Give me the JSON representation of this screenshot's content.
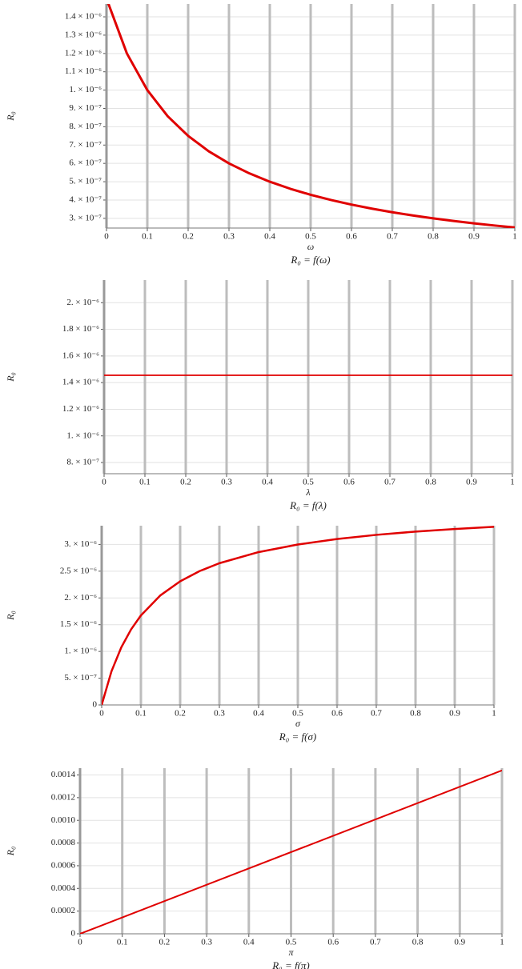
{
  "chart_data": [
    {
      "type": "line",
      "title": "R₀ = f(ω)",
      "xlabel": "ω",
      "ylabel": "R₀",
      "color": "#e00000",
      "xlim": [
        0,
        1
      ],
      "xticks": [
        0,
        0.1,
        0.2,
        0.3,
        0.4,
        0.5,
        0.6,
        0.7,
        0.8,
        0.9,
        1
      ],
      "ylim": [
        2.47e-07,
        1.47e-06
      ],
      "yticks": [
        {
          "value": 3e-07,
          "label": "3. × 10⁻⁷"
        },
        {
          "value": 4e-07,
          "label": "4. × 10⁻⁷"
        },
        {
          "value": 5e-07,
          "label": "5. × 10⁻⁷"
        },
        {
          "value": 6e-07,
          "label": "6. × 10⁻⁷"
        },
        {
          "value": 7e-07,
          "label": "7. × 10⁻⁷"
        },
        {
          "value": 8e-07,
          "label": "8. × 10⁻⁷"
        },
        {
          "value": 9e-07,
          "label": "9. × 10⁻⁷"
        },
        {
          "value": 1e-06,
          "label": "1. × 10⁻⁶"
        },
        {
          "value": 1.1e-06,
          "label": "1.1 × 10⁻⁶"
        },
        {
          "value": 1.2e-06,
          "label": "1.2 × 10⁻⁶"
        },
        {
          "value": 1.3e-06,
          "label": "1.3 × 10⁻⁶"
        },
        {
          "value": 1.4e-06,
          "label": "1.4 × 10⁻⁶"
        }
      ],
      "x": [
        0,
        0.05,
        0.1,
        0.15,
        0.2,
        0.25,
        0.3,
        0.35,
        0.4,
        0.45,
        0.5,
        0.55,
        0.6,
        0.65,
        0.7,
        0.75,
        0.8,
        0.85,
        0.9,
        0.95,
        1
      ],
      "values": [
        1.5e-06,
        1.2e-06,
        1e-06,
        8.571e-07,
        7.5e-07,
        6.667e-07,
        6e-07,
        5.455e-07,
        5e-07,
        4.615e-07,
        4.286e-07,
        4e-07,
        3.75e-07,
        3.529e-07,
        3.333e-07,
        3.158e-07,
        3e-07,
        2.857e-07,
        2.727e-07,
        2.609e-07,
        2.5e-07
      ]
    },
    {
      "type": "line",
      "title": "R₀ = f(λ)",
      "xlabel": "λ",
      "ylabel": "R₀",
      "color": "#e00000",
      "xlim": [
        0,
        1
      ],
      "xticks": [
        0,
        0.1,
        0.2,
        0.3,
        0.4,
        0.5,
        0.6,
        0.7,
        0.8,
        0.9,
        1
      ],
      "ylim": [
        7.16e-07,
        2.17e-06
      ],
      "yticks": [
        {
          "value": 8e-07,
          "label": "8. × 10⁻⁷"
        },
        {
          "value": 1e-06,
          "label": "1. × 10⁻⁶"
        },
        {
          "value": 1.2e-06,
          "label": "1.2 × 10⁻⁶"
        },
        {
          "value": 1.4e-06,
          "label": "1.4 × 10⁻⁶"
        },
        {
          "value": 1.6e-06,
          "label": "1.6 × 10⁻⁶"
        },
        {
          "value": 1.8e-06,
          "label": "1.8 × 10⁻⁶"
        },
        {
          "value": 2e-06,
          "label": "2. × 10⁻⁶"
        }
      ],
      "x": [
        0,
        1
      ],
      "values": [
        1.455e-06,
        1.455e-06
      ]
    },
    {
      "type": "line",
      "title": "R₀ = f(σ)",
      "xlabel": "σ",
      "ylabel": "R₀",
      "color": "#e00000",
      "xlim": [
        0,
        1
      ],
      "xticks": [
        0,
        0.1,
        0.2,
        0.3,
        0.4,
        0.5,
        0.6,
        0.7,
        0.8,
        0.9,
        1
      ],
      "ylim": [
        0,
        3.35e-06
      ],
      "yticks": [
        0,
        {
          "value": 5e-07,
          "label": "5. × 10⁻⁷"
        },
        {
          "value": 1e-06,
          "label": "1. × 10⁻⁶"
        },
        {
          "value": 1.5e-06,
          "label": "1.5 × 10⁻⁶"
        },
        {
          "value": 2e-06,
          "label": "2. × 10⁻⁶"
        },
        {
          "value": 2.5e-06,
          "label": "2.5 × 10⁻⁶"
        },
        {
          "value": 3e-06,
          "label": "3. × 10⁻⁶"
        }
      ],
      "x": [
        0,
        0.025,
        0.05,
        0.075,
        0.1,
        0.15,
        0.2,
        0.25,
        0.3,
        0.4,
        0.5,
        0.6,
        0.7,
        0.8,
        0.9,
        1
      ],
      "values": [
        0,
        6.29e-07,
        1.077e-06,
        1.412e-06,
        1.673e-06,
        2.05e-06,
        2.311e-06,
        2.503e-06,
        2.649e-06,
        2.857e-06,
        2.999e-06,
        3.101e-06,
        3.179e-06,
        3.24e-06,
        3.288e-06,
        3.329e-06
      ]
    },
    {
      "type": "line",
      "title": "R₀ = f(π)",
      "xlabel": "π",
      "ylabel": "R₀",
      "color": "#e00000",
      "xlim": [
        0,
        1
      ],
      "xticks": [
        0,
        0.1,
        0.2,
        0.3,
        0.4,
        0.5,
        0.6,
        0.7,
        0.8,
        0.9,
        1
      ],
      "ylim": [
        0,
        0.00146
      ],
      "yticks": [
        0,
        0.0002,
        0.0004,
        0.0006,
        0.0008,
        {
          "value": 0.001,
          "label": "0.0010"
        },
        0.0012,
        0.0014
      ],
      "x": [
        0,
        1
      ],
      "values": [
        0,
        0.00144
      ]
    }
  ]
}
